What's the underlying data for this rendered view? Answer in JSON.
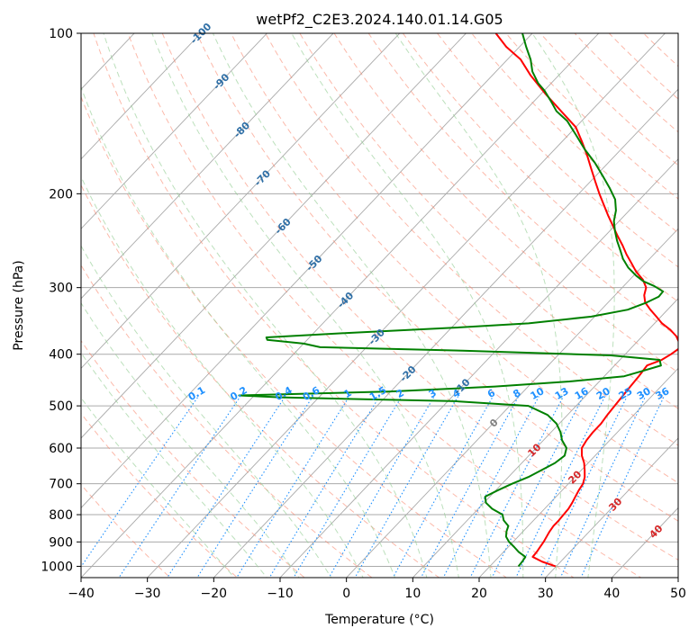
{
  "chart_data": {
    "type": "line",
    "subtype": "skew-t log-p diagram",
    "title": "wetPf2_C2E3.2024.140.01.14.G05",
    "xlabel": "Temperature (°C)",
    "ylabel": "Pressure (hPa)",
    "xlim": [
      -40,
      50
    ],
    "ylim": [
      1050,
      100
    ],
    "x_ticks": [
      -40,
      -30,
      -20,
      -10,
      0,
      10,
      20,
      30,
      40,
      50
    ],
    "x_tick_labels": [
      "−40",
      "−30",
      "−20",
      "−10",
      "0",
      "10",
      "20",
      "30",
      "40",
      "50"
    ],
    "y_ticks": [
      1000,
      900,
      800,
      700,
      600,
      500,
      400,
      300,
      200,
      100
    ],
    "y_tick_labels": [
      "1000",
      "900",
      "800",
      "700",
      "600",
      "500",
      "400",
      "300",
      "200",
      "100"
    ],
    "colors": {
      "temperature": "#ff0000",
      "dewpoint": "#008000",
      "dry_adiabat": "#fa8064",
      "moist_adiabat": "#8fcc8f",
      "mixing_ratio": "#1e90ff",
      "isotherm": "#aaaaaa",
      "isobar": "#aaaaaa",
      "isotherm_label": "#2f6fa6",
      "zero_label": "#808080",
      "warm_label": "#d62728"
    },
    "series": [
      {
        "name": "Temperature",
        "color": "#ff0000",
        "points": [
          [
            29.9,
            1000
          ],
          [
            27.2,
            980
          ],
          [
            25.1,
            960
          ],
          [
            25.0,
            940
          ],
          [
            24.8,
            920
          ],
          [
            24.6,
            900
          ],
          [
            24.3,
            880
          ],
          [
            24.0,
            860
          ],
          [
            23.8,
            840
          ],
          [
            23.8,
            820
          ],
          [
            23.7,
            800
          ],
          [
            23.6,
            780
          ],
          [
            23.3,
            760
          ],
          [
            22.9,
            740
          ],
          [
            22.5,
            720
          ],
          [
            22.2,
            700
          ],
          [
            21.5,
            680
          ],
          [
            20.5,
            660
          ],
          [
            19.4,
            640
          ],
          [
            18.0,
            620
          ],
          [
            16.9,
            600
          ],
          [
            16.5,
            580
          ],
          [
            16.3,
            560
          ],
          [
            16.3,
            540
          ],
          [
            16.0,
            520
          ],
          [
            15.8,
            500
          ],
          [
            15.6,
            480
          ],
          [
            15.4,
            460
          ],
          [
            15.2,
            440
          ],
          [
            14.9,
            420
          ],
          [
            16.3,
            410
          ],
          [
            16.9,
            400
          ],
          [
            17.3,
            390
          ],
          [
            16.4,
            380
          ],
          [
            15.1,
            370
          ],
          [
            13.3,
            360
          ],
          [
            11.1,
            350
          ],
          [
            9.3,
            340
          ],
          [
            7.4,
            330
          ],
          [
            5.6,
            320
          ],
          [
            4.4,
            310
          ],
          [
            3.6,
            300
          ],
          [
            2.0,
            290
          ],
          [
            -0.2,
            280
          ],
          [
            -2.1,
            270
          ],
          [
            -4.1,
            260
          ],
          [
            -6.0,
            250
          ],
          [
            -8.1,
            240
          ],
          [
            -10.2,
            230
          ],
          [
            -12.4,
            220
          ],
          [
            -14.6,
            210
          ],
          [
            -16.9,
            200
          ],
          [
            -19.2,
            190
          ],
          [
            -21.6,
            180
          ],
          [
            -24.1,
            170
          ],
          [
            -26.9,
            160
          ],
          [
            -30.0,
            150
          ],
          [
            -34.5,
            140
          ],
          [
            -39.3,
            130
          ],
          [
            -44.2,
            120
          ],
          [
            -48.0,
            112
          ],
          [
            -52.0,
            106
          ],
          [
            -55.5,
            100
          ]
        ]
      },
      {
        "name": "Dewpoint",
        "color": "#008000",
        "points": [
          [
            24.3,
            1000
          ],
          [
            24.2,
            980
          ],
          [
            24.0,
            960
          ],
          [
            22.3,
            940
          ],
          [
            20.9,
            920
          ],
          [
            19.4,
            900
          ],
          [
            18.2,
            880
          ],
          [
            17.5,
            860
          ],
          [
            17.0,
            840
          ],
          [
            15.5,
            820
          ],
          [
            14.5,
            800
          ],
          [
            12.1,
            780
          ],
          [
            10.3,
            760
          ],
          [
            9.3,
            740
          ],
          [
            10.3,
            720
          ],
          [
            11.5,
            700
          ],
          [
            13.0,
            680
          ],
          [
            14.0,
            660
          ],
          [
            15.0,
            640
          ],
          [
            15.4,
            620
          ],
          [
            14.6,
            600
          ],
          [
            12.8,
            580
          ],
          [
            11.4,
            560
          ],
          [
            9.6,
            540
          ],
          [
            7.0,
            520
          ],
          [
            2.8,
            500
          ],
          [
            -8.9,
            490
          ],
          [
            -35.8,
            482
          ],
          [
            -42.3,
            478
          ],
          [
            -20.0,
            470
          ],
          [
            -5.0,
            460
          ],
          [
            5.5,
            450
          ],
          [
            13.0,
            440
          ],
          [
            15.0,
            430
          ],
          [
            17.0,
            420
          ],
          [
            16.0,
            410
          ],
          [
            8.0,
            402
          ],
          [
            -15.0,
            394
          ],
          [
            -37.0,
            388
          ],
          [
            -40.0,
            382
          ],
          [
            -46.0,
            376
          ],
          [
            -46.5,
            372
          ],
          [
            -35.0,
            365
          ],
          [
            -20.0,
            357
          ],
          [
            -9.0,
            350
          ],
          [
            -0.5,
            340
          ],
          [
            4.0,
            330
          ],
          [
            5.8,
            320
          ],
          [
            6.8,
            312
          ],
          [
            6.7,
            305
          ],
          [
            4.6,
            298
          ],
          [
            2.3,
            292
          ],
          [
            0.4,
            285
          ],
          [
            -2.0,
            275
          ],
          [
            -4.0,
            265
          ],
          [
            -5.7,
            255
          ],
          [
            -7.5,
            245
          ],
          [
            -9.2,
            235
          ],
          [
            -10.8,
            225
          ],
          [
            -12.0,
            215
          ],
          [
            -13.7,
            205
          ],
          [
            -16.2,
            195
          ],
          [
            -19.0,
            185
          ],
          [
            -22.0,
            175
          ],
          [
            -25.5,
            165
          ],
          [
            -28.9,
            155
          ],
          [
            -32.2,
            146
          ],
          [
            -35.2,
            140
          ],
          [
            -37.5,
            134
          ],
          [
            -40.0,
            128
          ],
          [
            -42.0,
            124
          ],
          [
            -44.5,
            118
          ],
          [
            -46.5,
            112
          ],
          [
            -49.0,
            106
          ],
          [
            -51.5,
            100
          ]
        ]
      }
    ],
    "isotherm_annotations": [
      {
        "text": "-100",
        "temp": -100
      },
      {
        "text": "-90",
        "temp": -90
      },
      {
        "text": "-80",
        "temp": -80
      },
      {
        "text": "-70",
        "temp": -70
      },
      {
        "text": "-60",
        "temp": -60
      },
      {
        "text": "-50",
        "temp": -50
      },
      {
        "text": "-40",
        "temp": -40
      },
      {
        "text": "-30",
        "temp": -30
      },
      {
        "text": "-20",
        "temp": -20
      },
      {
        "text": "-10",
        "temp": -10
      },
      {
        "text": "0",
        "temp": 0
      },
      {
        "text": "10",
        "temp": 10
      },
      {
        "text": "20",
        "temp": 20
      },
      {
        "text": "30",
        "temp": 30
      },
      {
        "text": "40",
        "temp": 40
      }
    ],
    "mixing_ratio_annotations": [
      "0.1",
      "0.2",
      "0.4",
      "0.6",
      "1",
      "1.5",
      "2",
      "3",
      "4",
      "6",
      "8",
      "10",
      "13",
      "16",
      "20",
      "25",
      "30",
      "36"
    ],
    "mixing_ratio_label_pressure": 480
  }
}
